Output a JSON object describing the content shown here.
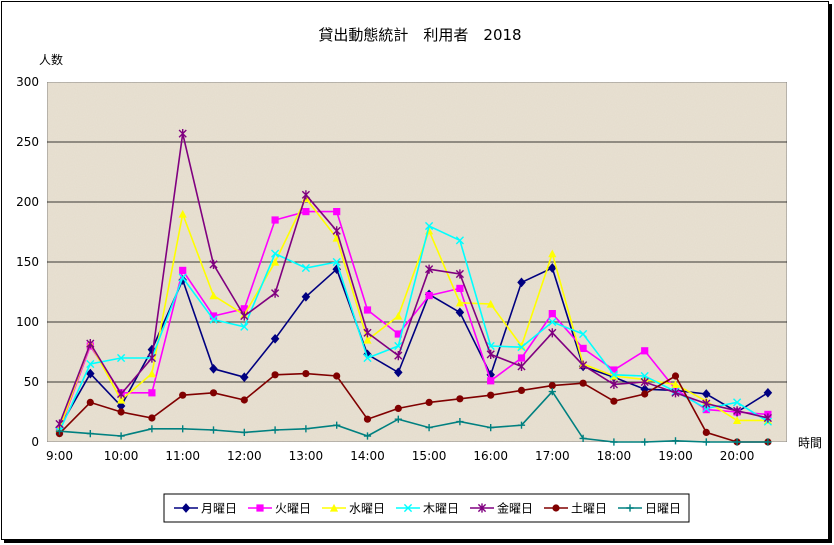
{
  "chart_data": {
    "type": "line",
    "title": "貸出動態統計　利用者　2018",
    "ylabel": "人数",
    "xlabel": "時間",
    "ylim": [
      0,
      300
    ],
    "yticks": [
      0,
      50,
      100,
      150,
      200,
      250,
      300
    ],
    "x_tick_labels": [
      "9:00",
      "10:00",
      "11:00",
      "12:00",
      "13:00",
      "14:00",
      "15:00",
      "16:00",
      "17:00",
      "18:00",
      "19:00",
      "20:00"
    ],
    "x": [
      "9:00",
      "9:30",
      "10:00",
      "10:30",
      "11:00",
      "11:30",
      "12:00",
      "12:30",
      "13:00",
      "13:30",
      "14:00",
      "14:30",
      "15:00",
      "15:30",
      "16:00",
      "16:30",
      "17:00",
      "17:30",
      "18:00",
      "18:30",
      "19:00",
      "19:30",
      "20:00",
      "20:30"
    ],
    "grid": true,
    "legend_position": "bottom",
    "plot_background": "#e9e2d3",
    "series": [
      {
        "name": "月曜日",
        "color": "#000080",
        "marker": "diamond",
        "values": [
          12,
          57,
          30,
          77,
          135,
          61,
          54,
          86,
          121,
          144,
          73,
          58,
          123,
          108,
          56,
          133,
          145,
          63,
          54,
          44,
          43,
          40,
          25,
          41
        ]
      },
      {
        "name": "火曜日",
        "color": "#ff00ff",
        "marker": "square",
        "values": [
          10,
          80,
          41,
          41,
          143,
          105,
          111,
          185,
          192,
          192,
          110,
          90,
          122,
          128,
          51,
          70,
          107,
          78,
          60,
          76,
          44,
          27,
          25,
          23
        ]
      },
      {
        "name": "水曜日",
        "color": "#ffff00",
        "marker": "triangle",
        "values": [
          11,
          82,
          35,
          57,
          190,
          122,
          106,
          150,
          203,
          170,
          85,
          105,
          176,
          116,
          115,
          80,
          157,
          65,
          55,
          52,
          48,
          34,
          18,
          18
        ]
      },
      {
        "name": "木曜日",
        "color": "#00ffff",
        "marker": "x",
        "values": [
          9,
          65,
          70,
          70,
          137,
          102,
          96,
          157,
          145,
          150,
          70,
          80,
          180,
          168,
          80,
          79,
          100,
          90,
          56,
          55,
          42,
          28,
          33,
          17
        ]
      },
      {
        "name": "金曜日",
        "color": "#800080",
        "marker": "star",
        "values": [
          15,
          82,
          40,
          70,
          257,
          148,
          105,
          124,
          206,
          176,
          91,
          72,
          144,
          140,
          73,
          63,
          91,
          64,
          48,
          50,
          41,
          32,
          26,
          20
        ]
      },
      {
        "name": "土曜日",
        "color": "#800000",
        "marker": "circle",
        "values": [
          7,
          33,
          25,
          20,
          39,
          41,
          35,
          56,
          57,
          55,
          19,
          28,
          33,
          36,
          39,
          43,
          47,
          49,
          34,
          40,
          55,
          8,
          0,
          0
        ]
      },
      {
        "name": "日曜日",
        "color": "#008080",
        "marker": "plus",
        "values": [
          9,
          7,
          5,
          11,
          11,
          10,
          8,
          10,
          11,
          14,
          5,
          19,
          12,
          17,
          12,
          14,
          42,
          3,
          0,
          0,
          1,
          0,
          0,
          0
        ]
      }
    ]
  }
}
